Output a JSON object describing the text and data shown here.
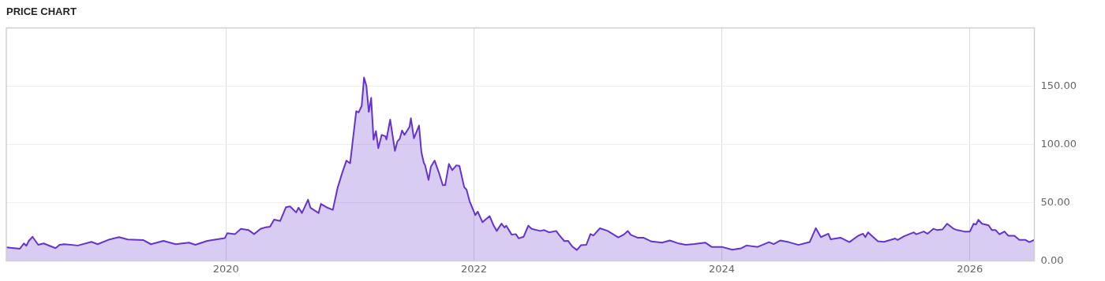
{
  "chart_data": {
    "type": "area",
    "title": "PRICE CHART",
    "x": [
      "2018-03-25",
      "2018-05-04",
      "2018-05-16",
      "2018-05-23",
      "2018-05-30",
      "2018-06-10",
      "2018-06-27",
      "2018-07-13",
      "2018-08-17",
      "2018-08-29",
      "2018-09-12",
      "2018-10-22",
      "2018-12-01",
      "2018-12-19",
      "2019-01-23",
      "2019-02-20",
      "2019-03-18",
      "2019-05-02",
      "2019-05-25",
      "2019-07-01",
      "2019-08-06",
      "2019-09-14",
      "2019-10-03",
      "2019-11-07",
      "2019-12-29",
      "2020-01-05",
      "2020-01-28",
      "2020-02-14",
      "2020-03-08",
      "2020-03-24",
      "2020-04-12",
      "2020-04-24",
      "2020-05-10",
      "2020-05-22",
      "2020-06-09",
      "2020-06-26",
      "2020-07-08",
      "2020-07-26",
      "2020-08-02",
      "2020-08-12",
      "2020-08-30",
      "2020-09-06",
      "2020-09-30",
      "2020-10-07",
      "2020-10-23",
      "2020-11-11",
      "2020-11-25",
      "2020-12-09",
      "2020-12-21",
      "2021-01-01",
      "2021-01-19",
      "2021-01-26",
      "2021-02-04",
      "2021-02-11",
      "2021-02-18",
      "2021-02-25",
      "2021-03-04",
      "2021-03-11",
      "2021-03-18",
      "2021-03-25",
      "2021-04-04",
      "2021-04-15",
      "2021-04-18",
      "2021-04-29",
      "2021-05-13",
      "2021-05-20",
      "2021-05-27",
      "2021-06-03",
      "2021-06-10",
      "2021-06-25",
      "2021-06-29",
      "2021-07-08",
      "2021-07-23",
      "2021-07-30",
      "2021-08-06",
      "2021-08-10",
      "2021-08-20",
      "2021-08-27",
      "2021-09-07",
      "2021-09-19",
      "2021-10-01",
      "2021-10-08",
      "2021-10-19",
      "2021-10-29",
      "2021-11-10",
      "2021-11-19",
      "2021-12-03",
      "2021-12-10",
      "2021-12-19",
      "2022-01-05",
      "2022-01-12",
      "2022-01-26",
      "2022-02-16",
      "2022-02-27",
      "2022-03-09",
      "2022-03-23",
      "2022-04-01",
      "2022-04-06",
      "2022-04-22",
      "2022-05-04",
      "2022-05-13",
      "2022-05-27",
      "2022-06-10",
      "2022-06-20",
      "2022-07-15",
      "2022-07-27",
      "2022-08-10",
      "2022-08-31",
      "2022-09-10",
      "2022-09-24",
      "2022-10-05",
      "2022-10-17",
      "2022-10-31",
      "2022-11-12",
      "2022-11-28",
      "2022-12-10",
      "2022-12-19",
      "2023-01-07",
      "2023-01-30",
      "2023-03-02",
      "2023-03-18",
      "2023-03-30",
      "2023-04-08",
      "2023-04-29",
      "2023-05-16",
      "2023-06-08",
      "2023-07-09",
      "2023-08-01",
      "2023-08-24",
      "2023-09-17",
      "2023-10-12",
      "2023-11-14",
      "2023-12-02",
      "2024-01-01",
      "2024-02-01",
      "2024-02-27",
      "2024-03-14",
      "2024-04-16",
      "2024-05-19",
      "2024-06-02",
      "2024-06-21",
      "2024-07-16",
      "2024-08-14",
      "2024-09-16",
      "2024-10-04",
      "2024-10-19",
      "2024-11-10",
      "2024-11-17",
      "2024-12-16",
      "2025-01-11",
      "2025-02-06",
      "2025-02-20",
      "2025-02-27",
      "2025-03-07",
      "2025-04-05",
      "2025-04-23",
      "2025-05-26",
      "2025-06-02",
      "2025-06-21",
      "2025-07-20",
      "2025-07-27",
      "2025-08-18",
      "2025-08-29",
      "2025-09-16",
      "2025-09-27",
      "2025-10-12",
      "2025-10-26",
      "2025-11-14",
      "2025-11-25",
      "2025-12-16",
      "2026-01-01",
      "2026-01-12",
      "2026-01-19",
      "2026-01-26",
      "2026-02-06",
      "2026-02-25",
      "2026-03-07",
      "2026-03-18",
      "2026-03-29",
      "2026-04-13",
      "2026-04-24",
      "2026-05-12",
      "2026-05-27",
      "2026-06-14",
      "2026-06-25",
      "2026-07-10"
    ],
    "series": [
      {
        "color": "#6633cc",
        "values": [
          11.6,
          10.4,
          15,
          13,
          17,
          20.7,
          13.8,
          15,
          10.9,
          13.8,
          14.3,
          13.2,
          16.3,
          14.3,
          18.4,
          20.4,
          18.4,
          17.9,
          14.3,
          17.2,
          14.3,
          15.7,
          13.8,
          17.2,
          19.6,
          23.7,
          23,
          27.5,
          26.4,
          23,
          27.5,
          28.6,
          29.3,
          35.4,
          34.3,
          46.1,
          46.8,
          41.6,
          45.7,
          41.1,
          52.5,
          45.7,
          41.1,
          48.9,
          46.1,
          43.8,
          62.7,
          75.9,
          86.1,
          83.8,
          128.6,
          127.5,
          133.1,
          157.5,
          150.2,
          128,
          140,
          104.1,
          111.5,
          96.8,
          108.2,
          107,
          104.3,
          121.3,
          94.5,
          102.5,
          104.8,
          112,
          108.2,
          115,
          122.5,
          105.3,
          116.2,
          93.4,
          84.3,
          82,
          69.5,
          80.9,
          86.1,
          76.3,
          65,
          65,
          83.2,
          77.9,
          82,
          81.6,
          63.4,
          61.1,
          51.3,
          39.3,
          42.3,
          33.2,
          38.4,
          30.9,
          25.7,
          32,
          28.6,
          30.2,
          22.5,
          23,
          19.3,
          20.7,
          30.2,
          27.5,
          25.7,
          26.4,
          24.5,
          25.7,
          21.8,
          17,
          17.2,
          12.5,
          9.3,
          13.4,
          13.8,
          23,
          21.8,
          28,
          25.7,
          20.2,
          22.5,
          25.7,
          22.3,
          19.8,
          19.8,
          16.6,
          15.7,
          17.5,
          15.2,
          13.8,
          14.4,
          15.6,
          12,
          12,
          9.6,
          10.8,
          13.2,
          12,
          16.1,
          14.4,
          17.5,
          16.1,
          13.7,
          16.1,
          28.1,
          20.4,
          23.3,
          18.5,
          19.9,
          16.1,
          21.6,
          23.3,
          20.4,
          24.5,
          16.8,
          16.3,
          19.2,
          18,
          21.1,
          24.5,
          22.8,
          25.2,
          23.3,
          27.6,
          26.4,
          26.9,
          31.9,
          27.6,
          26.4,
          25.2,
          25.2,
          31.9,
          31.2,
          35.3,
          31.9,
          30.5,
          26.4,
          26.4,
          22.8,
          25.2,
          21.6,
          21.6,
          18,
          18,
          16.1,
          18
        ]
      }
    ],
    "xlim": [
      "2018-03-25",
      "2026-07-10"
    ],
    "xticks": [
      {
        "value": "2020-01-01",
        "label": "2020"
      },
      {
        "value": "2022-01-01",
        "label": "2022"
      },
      {
        "value": "2024-01-01",
        "label": "2024"
      },
      {
        "value": "2026-01-01",
        "label": "2026"
      }
    ],
    "ylim": [
      0,
      200
    ],
    "yticks": [
      {
        "value": 0,
        "label": "0.00"
      },
      {
        "value": 50,
        "label": "50.00"
      },
      {
        "value": 100,
        "label": "100.00"
      },
      {
        "value": 150,
        "label": "150.00"
      }
    ],
    "grid": true,
    "legend": false,
    "marker": "none",
    "line_style": "solid"
  }
}
